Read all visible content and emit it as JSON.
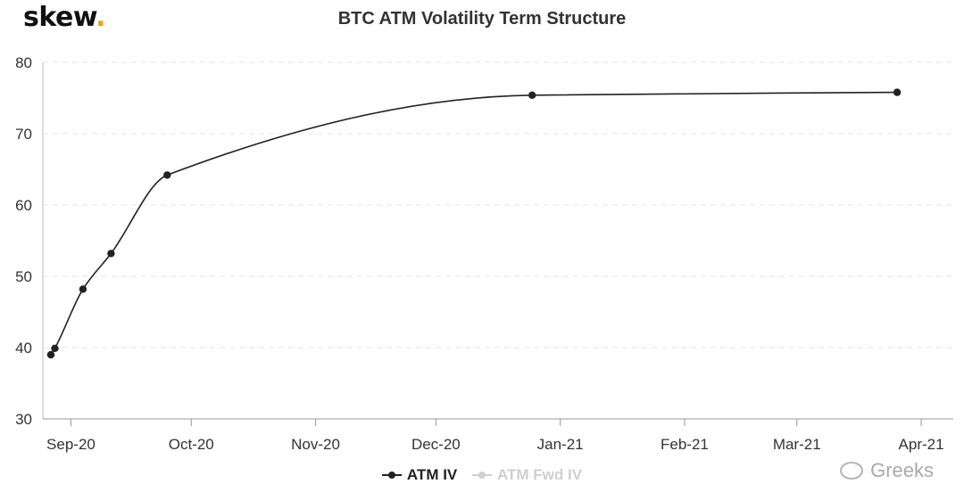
{
  "brand": {
    "name": "skew",
    "dot": "."
  },
  "chart_data": {
    "type": "line",
    "title": "BTC ATM Volatility Term Structure",
    "xlabel": "",
    "ylabel": "",
    "ylim": [
      30,
      80
    ],
    "yticks": [
      30,
      40,
      50,
      60,
      70,
      80
    ],
    "xlim": [
      "2020-08-25",
      "2021-04-09"
    ],
    "xticks": [
      {
        "date": "2020-09-01",
        "label": "Sep-20"
      },
      {
        "date": "2020-10-01",
        "label": "Oct-20"
      },
      {
        "date": "2020-11-01",
        "label": "Nov-20"
      },
      {
        "date": "2020-12-01",
        "label": "Dec-20"
      },
      {
        "date": "2021-01-01",
        "label": "Jan-21"
      },
      {
        "date": "2021-02-01",
        "label": "Feb-21"
      },
      {
        "date": "2021-03-01",
        "label": "Mar-21"
      },
      {
        "date": "2021-04-01",
        "label": "Apr-21"
      }
    ],
    "grid": true,
    "legend_position": "bottom-center",
    "series": [
      {
        "name": "ATM IV",
        "color": "#222222",
        "visible": true,
        "points": [
          {
            "x": "2020-08-27",
            "y": 39.0
          },
          {
            "x": "2020-08-28",
            "y": 39.9
          },
          {
            "x": "2020-09-04",
            "y": 48.2
          },
          {
            "x": "2020-09-11",
            "y": 53.2
          },
          {
            "x": "2020-09-25",
            "y": 64.2
          },
          {
            "x": "2020-12-25",
            "y": 75.4
          },
          {
            "x": "2021-03-26",
            "y": 75.8
          }
        ]
      },
      {
        "name": "ATM Fwd IV",
        "color": "#cccccc",
        "visible": false,
        "points": []
      }
    ]
  },
  "watermark": {
    "text": "Greeks",
    "icon": "wechat-icon"
  }
}
